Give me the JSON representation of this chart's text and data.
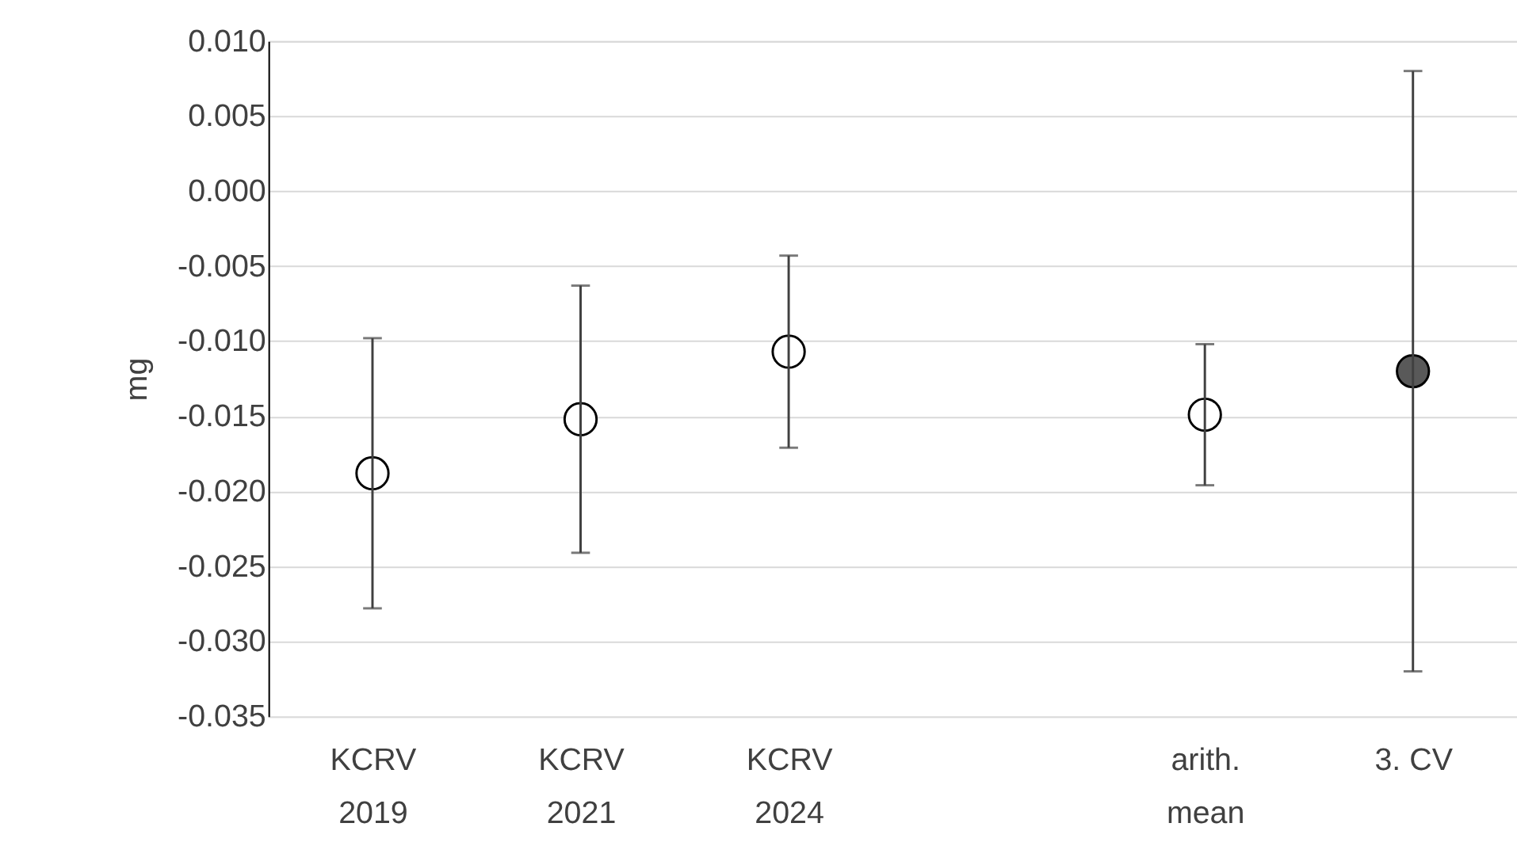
{
  "chart_data": {
    "type": "scatter",
    "ylabel": "mg",
    "categories": [
      "KCRV\n2019",
      "KCRV\n2021",
      "KCRV\n2024",
      null,
      "arith.\nmean",
      "3. CV"
    ],
    "values": [
      -0.0188,
      -0.0152,
      -0.0107,
      null,
      -0.0149,
      -0.012
    ],
    "errors": [
      [
        -0.0278,
        -0.0098
      ],
      [
        -0.0241,
        -0.0063
      ],
      [
        -0.0171,
        -0.0043
      ],
      null,
      [
        -0.0196,
        -0.0102
      ],
      [
        -0.032,
        0.008
      ]
    ],
    "colors": [
      "#ffffff",
      "#ffffff",
      "#ffffff",
      null,
      "#ffffff",
      "#595959"
    ],
    "marker": "circle",
    "ylim": [
      -0.035,
      0.01
    ],
    "yticks": [
      {
        "value": -0.035,
        "label": "-0.035"
      },
      {
        "value": -0.03,
        "label": "-0.030"
      },
      {
        "value": -0.025,
        "label": "-0.025"
      },
      {
        "value": -0.02,
        "label": "-0.020"
      },
      {
        "value": -0.015,
        "label": "-0.015"
      },
      {
        "value": -0.01,
        "label": "-0.010"
      },
      {
        "value": -0.005,
        "label": "-0.005"
      },
      {
        "value": 0,
        "label": "0.000"
      },
      {
        "value": 0.005,
        "label": "0.005"
      },
      {
        "value": 0.01,
        "label": "0.010"
      }
    ],
    "grid": "y"
  }
}
